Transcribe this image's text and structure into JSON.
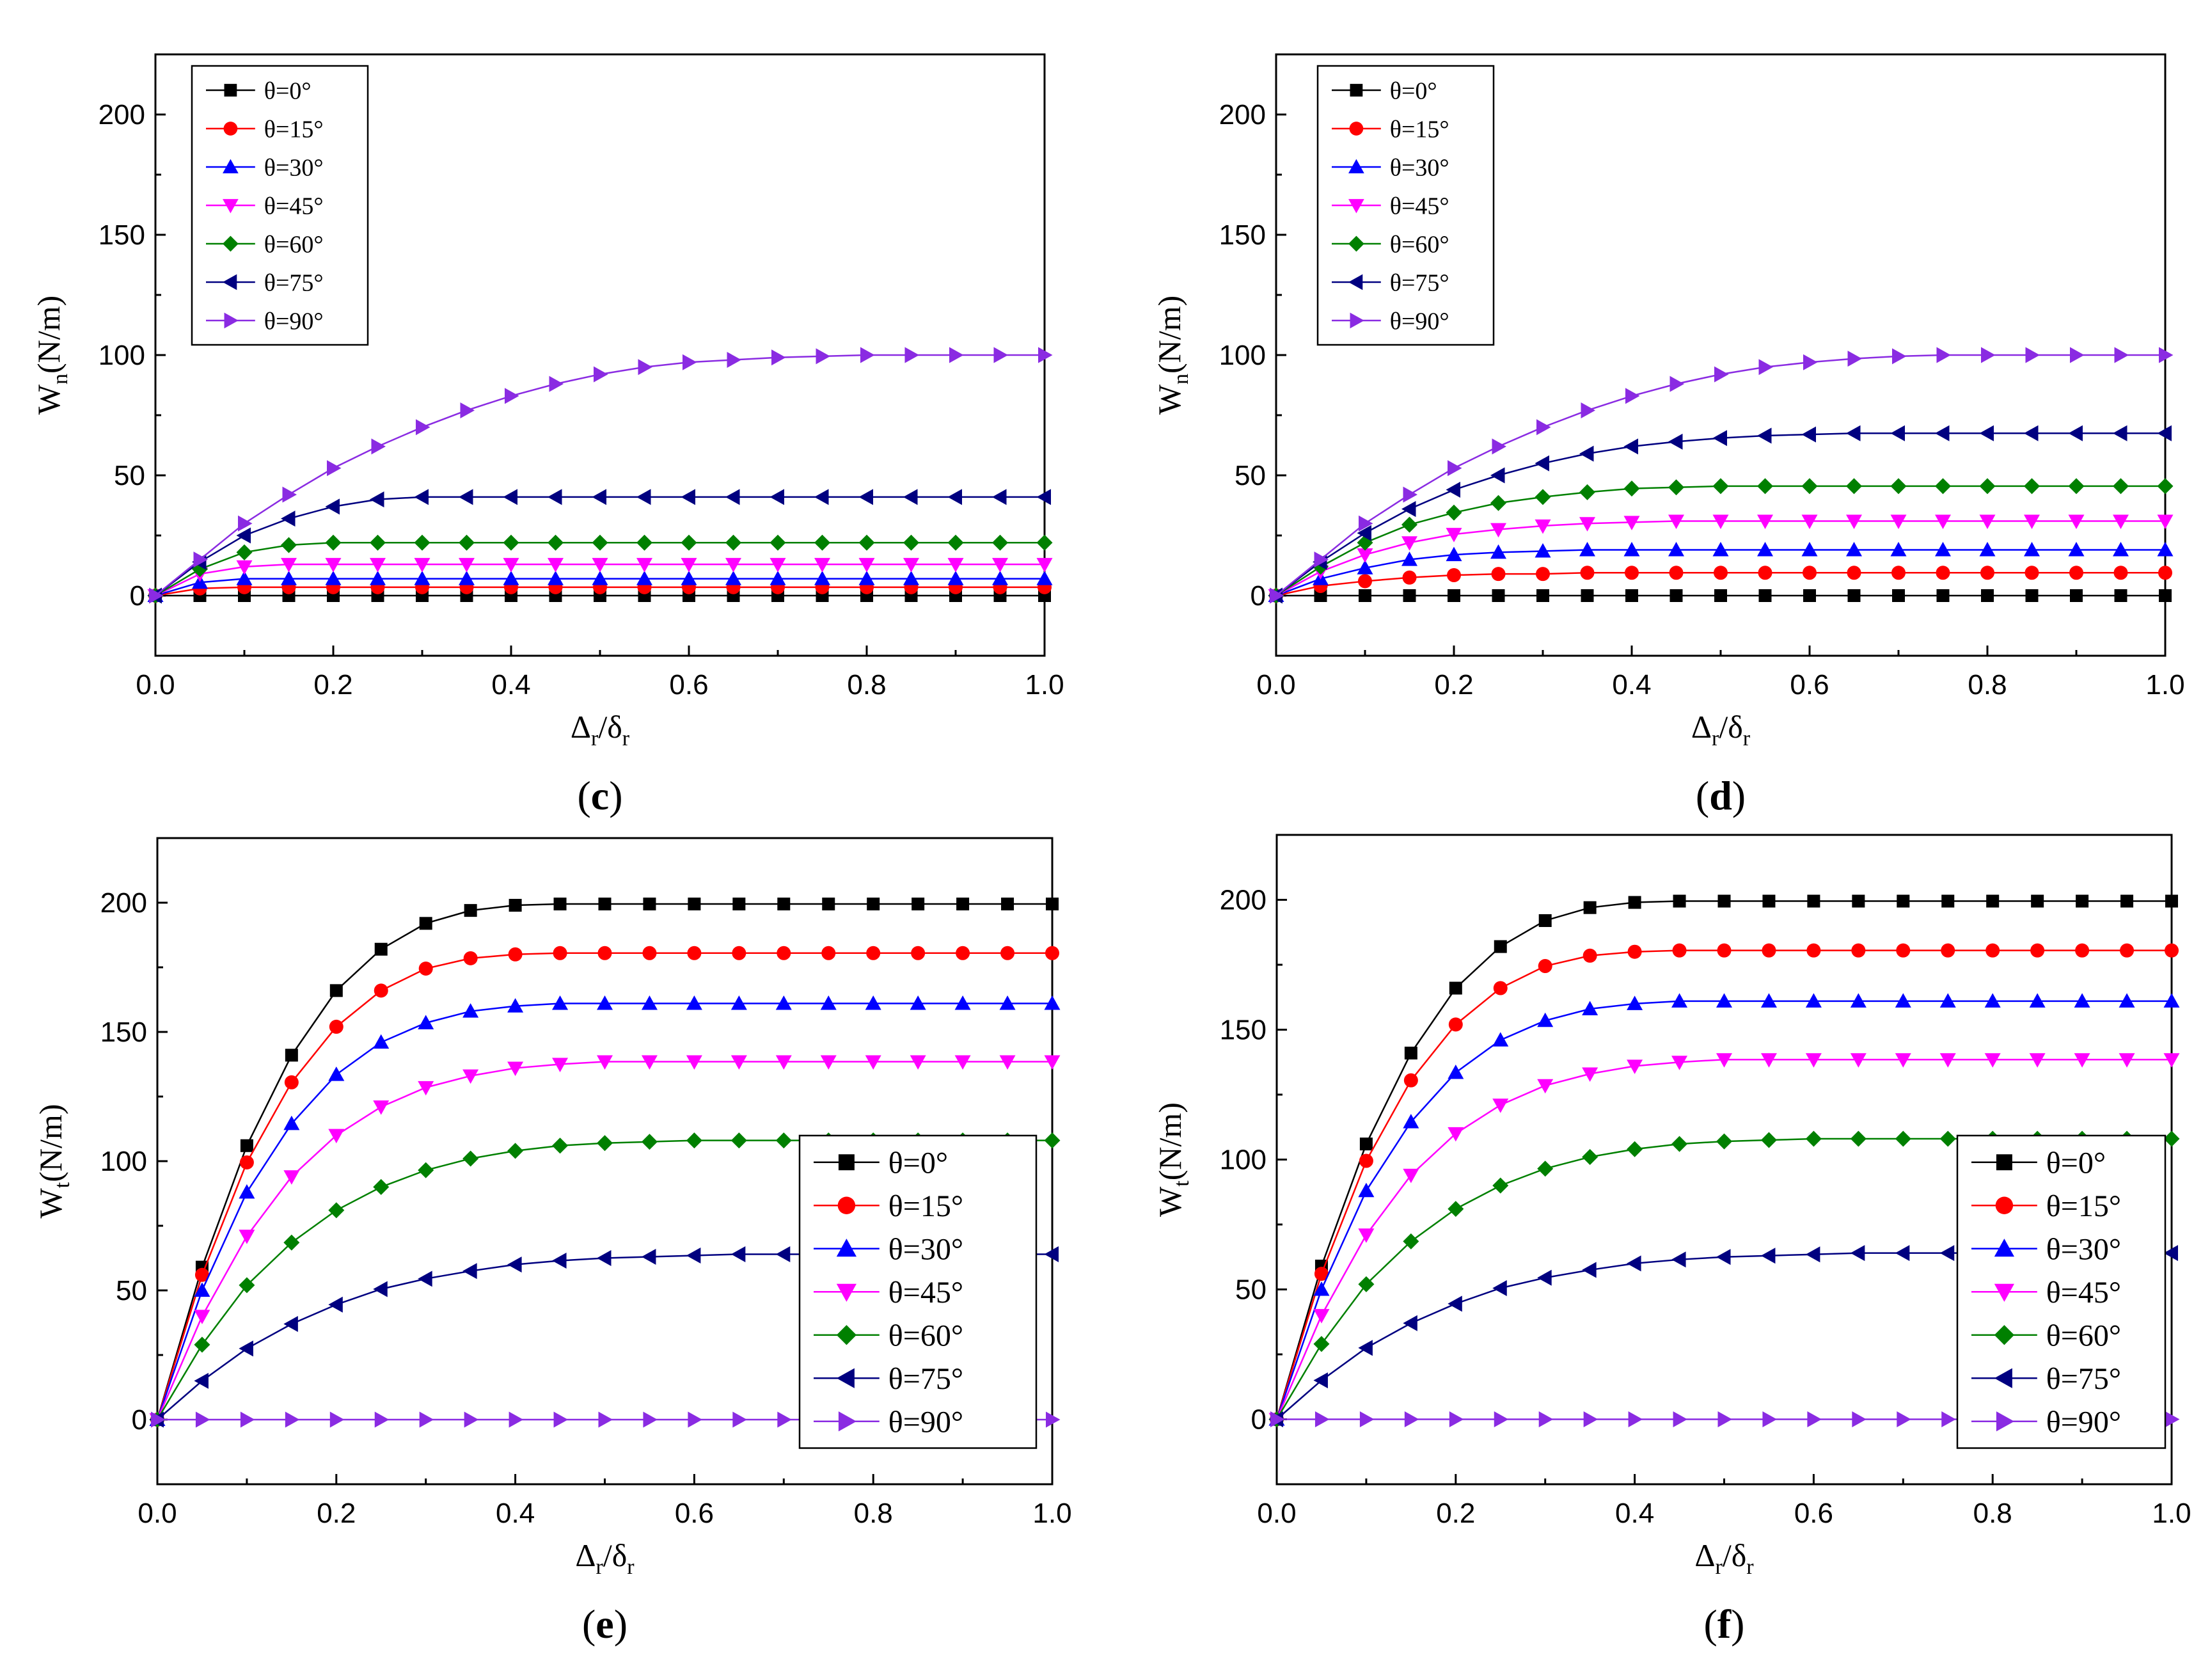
{
  "figure": {
    "series_colors": [
      "#000000",
      "#ff0000",
      "#0000ff",
      "#ff00ff",
      "#008000",
      "#000080",
      "#8a2be2"
    ],
    "markers": [
      "square",
      "circle",
      "triangle-up",
      "triangle-down",
      "diamond",
      "triangle-left",
      "triangle-right"
    ]
  },
  "chart_data": [
    {
      "panel": "(c)",
      "panel_letter": "c",
      "type": "line",
      "xlabel": "Δr/δr",
      "xlabel_main": "Δ",
      "xlabel_sub1": "r",
      "xlabel_mid": "/δ",
      "xlabel_sub2": "r",
      "ylabel": "Wn(N/m)",
      "ylabel_main": "W",
      "ylabel_sub": "n",
      "ylabel_rest": "(N/m)",
      "xlim": [
        0,
        1.0
      ],
      "ylim": [
        -25,
        225
      ],
      "xticks": [
        "0.0",
        "0.2",
        "0.4",
        "0.6",
        "0.8",
        "1.0"
      ],
      "yticks": [
        "0",
        "50",
        "100",
        "150",
        "200"
      ],
      "legend_position": "top-left",
      "x": [
        0,
        0.05,
        0.1,
        0.15,
        0.2,
        0.25,
        0.3,
        0.35,
        0.4,
        0.45,
        0.5,
        0.55,
        0.6,
        0.65,
        0.7,
        0.75,
        0.8,
        0.85,
        0.9,
        0.95,
        1.0
      ],
      "series": [
        {
          "name": "θ=0°",
          "values": [
            0,
            0,
            0,
            0,
            0,
            0,
            0,
            0,
            0,
            0,
            0,
            0,
            0,
            0,
            0,
            0,
            0,
            0,
            0,
            0,
            0
          ]
        },
        {
          "name": "θ=15°",
          "values": [
            0,
            3,
            3.5,
            3.5,
            3.5,
            3.5,
            3.5,
            3.5,
            3.5,
            3.5,
            3.5,
            3.5,
            3.5,
            3.5,
            3.5,
            3.5,
            3.5,
            3.5,
            3.5,
            3.5,
            3.5
          ]
        },
        {
          "name": "θ=30°",
          "values": [
            0,
            5.5,
            7,
            7,
            7,
            7,
            7,
            7,
            7,
            7,
            7,
            7,
            7,
            7,
            7,
            7,
            7,
            7,
            7,
            7,
            7
          ]
        },
        {
          "name": "θ=45°",
          "values": [
            0,
            9,
            12,
            13,
            13,
            13,
            13,
            13,
            13,
            13,
            13,
            13,
            13,
            13,
            13,
            13,
            13,
            13,
            13,
            13,
            13
          ]
        },
        {
          "name": "θ=60°",
          "values": [
            0,
            11,
            18,
            21,
            22,
            22,
            22,
            22,
            22,
            22,
            22,
            22,
            22,
            22,
            22,
            22,
            22,
            22,
            22,
            22,
            22
          ]
        },
        {
          "name": "θ=75°",
          "values": [
            0,
            14,
            25,
            32,
            37,
            40,
            41,
            41,
            41,
            41,
            41,
            41,
            41,
            41,
            41,
            41,
            41,
            41,
            41,
            41,
            41
          ]
        },
        {
          "name": "θ=90°",
          "values": [
            0,
            15,
            30,
            42,
            53,
            62,
            70,
            77,
            83,
            88,
            92,
            95,
            97,
            98,
            99,
            99.5,
            100,
            100,
            100,
            100,
            100
          ]
        }
      ]
    },
    {
      "panel": "(d)",
      "panel_letter": "d",
      "type": "line",
      "xlabel": "Δr/δr",
      "xlabel_main": "Δ",
      "xlabel_sub1": "r",
      "xlabel_mid": "/δ",
      "xlabel_sub2": "r",
      "ylabel": "Wn(N/m)",
      "ylabel_main": "W",
      "ylabel_sub": "n",
      "ylabel_rest": "(N/m)",
      "xlim": [
        0,
        1.0
      ],
      "ylim": [
        -25,
        225
      ],
      "xticks": [
        "0.0",
        "0.2",
        "0.4",
        "0.6",
        "0.8",
        "1.0"
      ],
      "yticks": [
        "0",
        "50",
        "100",
        "150",
        "200"
      ],
      "legend_position": "top-left",
      "x": [
        0,
        0.05,
        0.1,
        0.15,
        0.2,
        0.25,
        0.3,
        0.35,
        0.4,
        0.45,
        0.5,
        0.55,
        0.6,
        0.65,
        0.7,
        0.75,
        0.8,
        0.85,
        0.9,
        0.95,
        1.0
      ],
      "series": [
        {
          "name": "θ=0°",
          "values": [
            0,
            0,
            0,
            0,
            0,
            0,
            0,
            0,
            0,
            0,
            0,
            0,
            0,
            0,
            0,
            0,
            0,
            0,
            0,
            0,
            0
          ]
        },
        {
          "name": "θ=15°",
          "values": [
            0,
            4,
            6,
            7.5,
            8.5,
            9,
            9,
            9.5,
            9.5,
            9.5,
            9.5,
            9.5,
            9.5,
            9.5,
            9.5,
            9.5,
            9.5,
            9.5,
            9.5,
            9.5,
            9.5
          ]
        },
        {
          "name": "θ=30°",
          "values": [
            0,
            7,
            11.5,
            15,
            17,
            18,
            18.5,
            19,
            19,
            19,
            19,
            19,
            19,
            19,
            19,
            19,
            19,
            19,
            19,
            19,
            19
          ]
        },
        {
          "name": "θ=45°",
          "values": [
            0,
            10,
            17,
            22,
            25.5,
            27.5,
            29,
            30,
            30.5,
            31,
            31,
            31,
            31,
            31,
            31,
            31,
            31,
            31,
            31,
            31,
            31
          ]
        },
        {
          "name": "θ=60°",
          "values": [
            0,
            12,
            22,
            29.5,
            34.5,
            38.5,
            41,
            43,
            44.5,
            45,
            45.5,
            45.5,
            45.5,
            45.5,
            45.5,
            45.5,
            45.5,
            45.5,
            45.5,
            45.5,
            45.5
          ]
        },
        {
          "name": "θ=75°",
          "values": [
            0,
            14,
            26,
            36,
            44,
            50,
            55,
            59,
            62,
            64,
            65.5,
            66.5,
            67,
            67.5,
            67.5,
            67.5,
            67.5,
            67.5,
            67.5,
            67.5,
            67.5
          ]
        },
        {
          "name": "θ=90°",
          "values": [
            0,
            15,
            30,
            42,
            53,
            62,
            70,
            77,
            83,
            88,
            92,
            95,
            97,
            98.5,
            99.5,
            100,
            100,
            100,
            100,
            100,
            100
          ]
        }
      ]
    },
    {
      "panel": "(e)",
      "panel_letter": "e",
      "type": "line",
      "xlabel": "Δr/δr",
      "xlabel_main": "Δ",
      "xlabel_sub1": "r",
      "xlabel_mid": "/δ",
      "xlabel_sub2": "r",
      "ylabel": "Wt(N/m)",
      "ylabel_main": "W",
      "ylabel_sub": "t",
      "ylabel_rest": "(N/m)",
      "xlim": [
        0,
        1.0
      ],
      "ylim": [
        -25,
        225
      ],
      "xticks": [
        "0.0",
        "0.2",
        "0.4",
        "0.6",
        "0.8",
        "1.0"
      ],
      "yticks": [
        "0",
        "50",
        "100",
        "150",
        "200"
      ],
      "legend_position": "bottom-right",
      "x": [
        0,
        0.05,
        0.1,
        0.15,
        0.2,
        0.25,
        0.3,
        0.35,
        0.4,
        0.45,
        0.5,
        0.55,
        0.6,
        0.65,
        0.7,
        0.75,
        0.8,
        0.85,
        0.9,
        0.95,
        1.0
      ],
      "series": [
        {
          "name": "θ=0°",
          "values": [
            0,
            59,
            106,
            141,
            166,
            182,
            192,
            197,
            199,
            199.5,
            199.5,
            199.5,
            199.5,
            199.5,
            199.5,
            199.5,
            199.5,
            199.5,
            199.5,
            199.5,
            199.5
          ]
        },
        {
          "name": "θ=15°",
          "values": [
            0,
            56,
            99.5,
            130.5,
            152,
            166,
            174.5,
            178.5,
            180,
            180.5,
            180.5,
            180.5,
            180.5,
            180.5,
            180.5,
            180.5,
            180.5,
            180.5,
            180.5,
            180.5,
            180.5
          ]
        },
        {
          "name": "θ=30°",
          "values": [
            0,
            50,
            88,
            114.5,
            133.5,
            146,
            153.5,
            158,
            160,
            161,
            161,
            161,
            161,
            161,
            161,
            161,
            161,
            161,
            161,
            161,
            161
          ]
        },
        {
          "name": "θ=45°",
          "values": [
            0,
            40,
            71,
            94,
            110,
            121,
            128.5,
            133,
            136,
            137.5,
            138.5,
            138.5,
            138.5,
            138.5,
            138.5,
            138.5,
            138.5,
            138.5,
            138.5,
            138.5,
            138.5
          ]
        },
        {
          "name": "θ=60°",
          "values": [
            0,
            29,
            52,
            68.5,
            81,
            90,
            96.5,
            101,
            104,
            106,
            107,
            107.5,
            108,
            108,
            108,
            108,
            108,
            108,
            108,
            108,
            108
          ]
        },
        {
          "name": "θ=75°",
          "values": [
            0,
            15,
            27.5,
            37,
            44.5,
            50.5,
            54.5,
            57.5,
            60,
            61.5,
            62.5,
            63,
            63.5,
            64,
            64,
            64,
            64,
            64,
            64,
            64,
            64
          ]
        },
        {
          "name": "θ=90°",
          "values": [
            0,
            0,
            0,
            0,
            0,
            0,
            0,
            0,
            0,
            0,
            0,
            0,
            0,
            0,
            0,
            0,
            0,
            0,
            0,
            0,
            0
          ]
        }
      ]
    },
    {
      "panel": "(f)",
      "panel_letter": "f",
      "type": "line",
      "xlabel": "Δr/δr",
      "xlabel_main": "Δ",
      "xlabel_sub1": "r",
      "xlabel_mid": "/δ",
      "xlabel_sub2": "r",
      "ylabel": "Wt(N/m)",
      "ylabel_main": "W",
      "ylabel_sub": "t",
      "ylabel_rest": "(N/m)",
      "xlim": [
        0,
        1.0
      ],
      "ylim": [
        -25,
        225
      ],
      "xticks": [
        "0.0",
        "0.2",
        "0.4",
        "0.6",
        "0.8",
        "1.0"
      ],
      "yticks": [
        "0",
        "50",
        "100",
        "150",
        "200"
      ],
      "legend_position": "bottom-right",
      "x": [
        0,
        0.05,
        0.1,
        0.15,
        0.2,
        0.25,
        0.3,
        0.35,
        0.4,
        0.45,
        0.5,
        0.55,
        0.6,
        0.65,
        0.7,
        0.75,
        0.8,
        0.85,
        0.9,
        0.95,
        1.0
      ],
      "series": [
        {
          "name": "θ=0°",
          "values": [
            0,
            59,
            106,
            141,
            166,
            182,
            192,
            197,
            199,
            199.5,
            199.5,
            199.5,
            199.5,
            199.5,
            199.5,
            199.5,
            199.5,
            199.5,
            199.5,
            199.5,
            199.5
          ]
        },
        {
          "name": "θ=15°",
          "values": [
            0,
            56,
            99.5,
            130.5,
            152,
            166,
            174.5,
            178.5,
            180,
            180.5,
            180.5,
            180.5,
            180.5,
            180.5,
            180.5,
            180.5,
            180.5,
            180.5,
            180.5,
            180.5,
            180.5
          ]
        },
        {
          "name": "θ=30°",
          "values": [
            0,
            50,
            88,
            114.5,
            133.5,
            146,
            153.5,
            158,
            160,
            161,
            161,
            161,
            161,
            161,
            161,
            161,
            161,
            161,
            161,
            161,
            161
          ]
        },
        {
          "name": "θ=45°",
          "values": [
            0,
            40,
            71,
            94,
            110,
            121,
            128.5,
            133,
            136,
            137.5,
            138.5,
            138.5,
            138.5,
            138.5,
            138.5,
            138.5,
            138.5,
            138.5,
            138.5,
            138.5,
            138.5
          ]
        },
        {
          "name": "θ=60°",
          "values": [
            0,
            29,
            52,
            68.5,
            81,
            90,
            96.5,
            101,
            104,
            106,
            107,
            107.5,
            108,
            108,
            108,
            108,
            108,
            108,
            108,
            108,
            108
          ]
        },
        {
          "name": "θ=75°",
          "values": [
            0,
            15,
            27.5,
            37,
            44.5,
            50.5,
            54.5,
            57.5,
            60,
            61.5,
            62.5,
            63,
            63.5,
            64,
            64,
            64,
            64,
            64,
            64,
            64,
            64
          ]
        },
        {
          "name": "θ=90°",
          "values": [
            0,
            0,
            0,
            0,
            0,
            0,
            0,
            0,
            0,
            0,
            0,
            0,
            0,
            0,
            0,
            0,
            0,
            0,
            0,
            0,
            0
          ]
        }
      ]
    }
  ]
}
